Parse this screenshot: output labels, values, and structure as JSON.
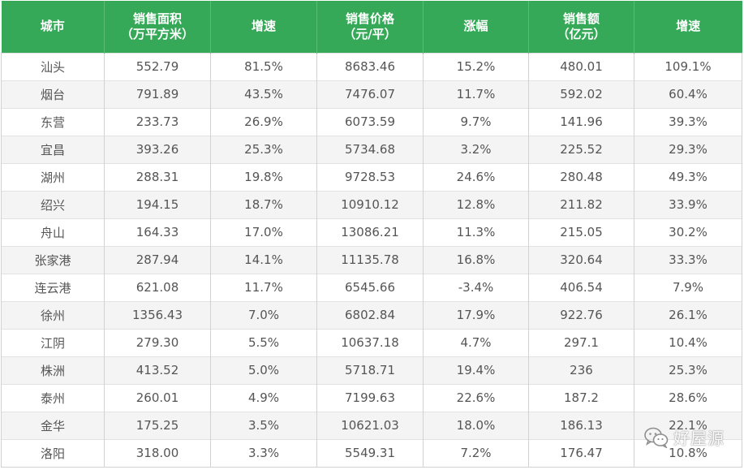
{
  "table": {
    "headers": [
      {
        "line1": "城市",
        "line2": ""
      },
      {
        "line1": "销售面积",
        "line2": "（万平方米）"
      },
      {
        "line1": "增速",
        "line2": ""
      },
      {
        "line1": "销售价格",
        "line2": "（元/平）"
      },
      {
        "line1": "涨幅",
        "line2": ""
      },
      {
        "line1": "销售额",
        "line2": "（亿元）"
      },
      {
        "line1": "增速",
        "line2": ""
      }
    ],
    "rows": [
      [
        "汕头",
        "552.79",
        "81.5%",
        "8683.46",
        "15.2%",
        "480.01",
        "109.1%"
      ],
      [
        "烟台",
        "791.89",
        "43.5%",
        "7476.07",
        "11.7%",
        "592.02",
        "60.4%"
      ],
      [
        "东营",
        "233.73",
        "26.9%",
        "6073.59",
        "9.7%",
        "141.96",
        "39.3%"
      ],
      [
        "宜昌",
        "393.26",
        "25.3%",
        "5734.68",
        "3.2%",
        "225.52",
        "29.3%"
      ],
      [
        "湖州",
        "288.31",
        "19.8%",
        "9728.53",
        "24.6%",
        "280.48",
        "49.3%"
      ],
      [
        "绍兴",
        "194.15",
        "18.7%",
        "10910.12",
        "12.8%",
        "211.82",
        "33.9%"
      ],
      [
        "舟山",
        "164.33",
        "17.0%",
        "13086.21",
        "11.3%",
        "215.05",
        "30.2%"
      ],
      [
        "张家港",
        "287.94",
        "14.1%",
        "11135.78",
        "16.8%",
        "320.64",
        "33.3%"
      ],
      [
        "连云港",
        "621.08",
        "11.7%",
        "6545.66",
        "-3.4%",
        "406.54",
        "7.9%"
      ],
      [
        "徐州",
        "1356.43",
        "7.0%",
        "6802.84",
        "17.9%",
        "922.76",
        "26.1%"
      ],
      [
        "江阴",
        "279.30",
        "5.5%",
        "10637.18",
        "4.7%",
        "297.1",
        "10.4%"
      ],
      [
        "株洲",
        "413.52",
        "5.0%",
        "5718.71",
        "19.4%",
        "236",
        "25.3%"
      ],
      [
        "泰州",
        "260.01",
        "4.9%",
        "7199.63",
        "22.6%",
        "187.2",
        "28.6%"
      ],
      [
        "金华",
        "175.25",
        "3.5%",
        "10621.03",
        "18.0%",
        "186.13",
        "22.1%"
      ],
      [
        "洛阳",
        "318.00",
        "3.3%",
        "5549.31",
        "7.2%",
        "176.47",
        "10.8%"
      ]
    ]
  },
  "watermark": {
    "icon": "wechat-icon",
    "text": "好屋源"
  },
  "colors": {
    "header_bg": "#35a957",
    "header_text": "#ffffff",
    "cell_text": "#555555",
    "stripe": "#f4f4f4"
  }
}
